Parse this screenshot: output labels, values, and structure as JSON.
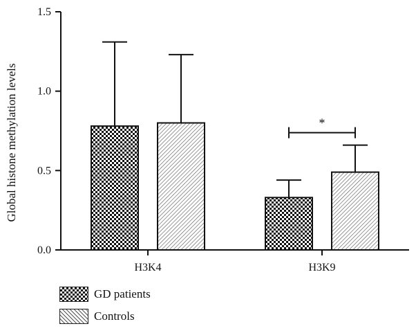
{
  "chart_data": {
    "type": "bar",
    "categories": [
      "H3K4",
      "H3K9"
    ],
    "series": [
      {
        "name": "GD patients",
        "values": [
          0.78,
          0.33
        ],
        "errors": [
          0.53,
          0.11
        ],
        "pattern": "checkered"
      },
      {
        "name": "Controls",
        "values": [
          0.8,
          0.49
        ],
        "errors": [
          0.43,
          0.17
        ],
        "pattern": "hatched"
      }
    ],
    "ylabel": "Global histone methylation levels",
    "xlabel": "",
    "ylim": [
      0,
      1.5
    ],
    "yticks": [
      "0.0",
      "0.5",
      "1.0",
      "1.5"
    ],
    "grid": false,
    "legend_position": "bottom-left",
    "annotations": [
      {
        "text": "*",
        "category": "H3K9",
        "type": "significance-bracket"
      }
    ]
  }
}
